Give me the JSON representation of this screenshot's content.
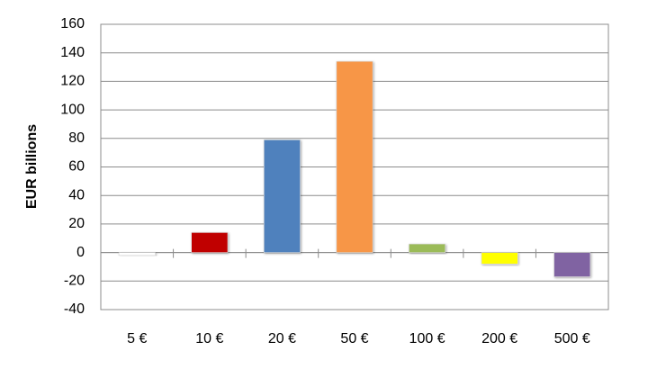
{
  "chart_data": {
    "type": "bar",
    "y_label": "EUR billions",
    "categories": [
      "5 €",
      "10 €",
      "20 €",
      "50 €",
      "100 €",
      "200 €",
      "500 €"
    ],
    "values": [
      -2,
      14,
      79,
      134,
      6,
      -8,
      -17
    ],
    "colors": [
      "#ffffff",
      "#c00000",
      "#4f81bd",
      "#f79646",
      "#9bbb59",
      "#ffff00",
      "#8064a2"
    ],
    "ylim": [
      -40,
      160
    ],
    "yticks": [
      -40,
      -20,
      0,
      20,
      40,
      60,
      80,
      100,
      120,
      140,
      160
    ],
    "grid": true
  }
}
